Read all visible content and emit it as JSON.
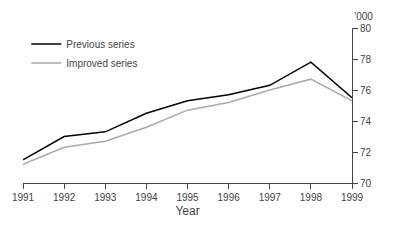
{
  "chart_data": {
    "type": "line",
    "x": [
      1991,
      1992,
      1993,
      1994,
      1995,
      1996,
      1997,
      1998,
      1999
    ],
    "series": [
      {
        "name": "Previous series",
        "color": "#000000",
        "values": [
          71.5,
          73.0,
          73.3,
          74.5,
          75.3,
          75.7,
          76.3,
          77.8,
          75.5
        ]
      },
      {
        "name": "Improved series",
        "color": "#aaaaaa",
        "values": [
          71.2,
          72.3,
          72.7,
          73.6,
          74.7,
          75.2,
          76.0,
          76.7,
          75.3
        ]
      }
    ],
    "xlabel": "Year",
    "ylabel": "’000",
    "xlim": [
      1991,
      1999
    ],
    "xticks": [
      1991,
      1992,
      1993,
      1994,
      1995,
      1996,
      1997,
      1998,
      1999
    ],
    "ylim": [
      70,
      80
    ],
    "yticks": [
      70,
      72,
      74,
      76,
      78,
      80
    ],
    "grid": false,
    "legend": "upper left"
  }
}
